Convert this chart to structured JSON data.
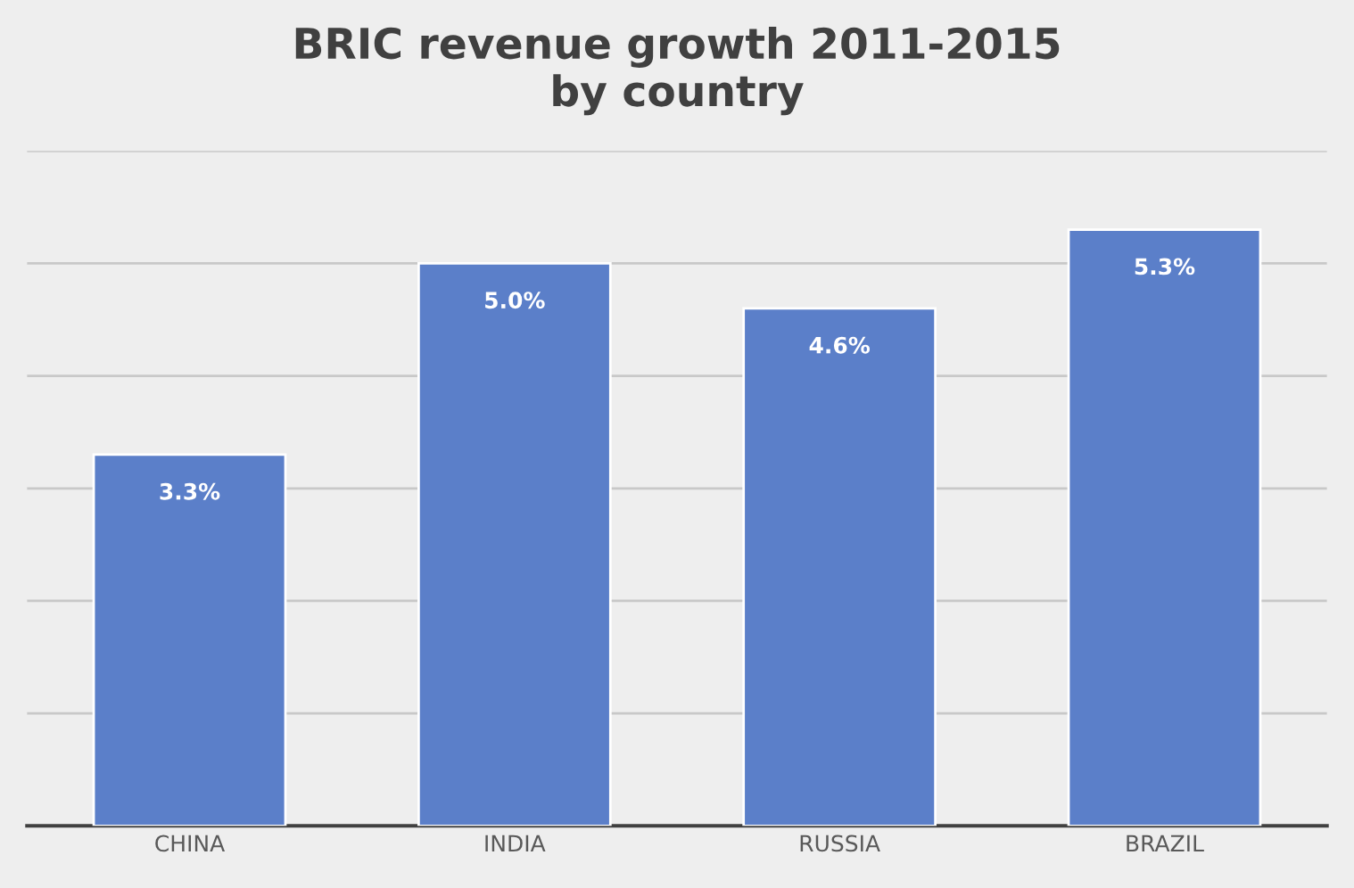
{
  "chart_data": {
    "type": "bar",
    "title": "BRIC revenue growth 2011-2015\nby country",
    "categories": [
      "CHINA",
      "INDIA",
      "RUSSIA",
      "BRAZIL"
    ],
    "values": [
      3.3,
      5.0,
      4.6,
      5.3
    ],
    "value_labels": [
      "3.3%",
      "5.0%",
      "4.6%",
      "5.3%"
    ],
    "color": "#5b7fc9",
    "ylim": [
      0,
      6
    ],
    "yticks": [
      {
        "value": 0,
        "label": null
      },
      {
        "value": 1,
        "label": null
      },
      {
        "value": 2,
        "label": null
      },
      {
        "value": 3,
        "label": null
      },
      {
        "value": 4,
        "label": null
      },
      {
        "value": 5,
        "label": null
      },
      {
        "value": 6,
        "label": null
      }
    ],
    "grid": "y",
    "legend": false
  }
}
